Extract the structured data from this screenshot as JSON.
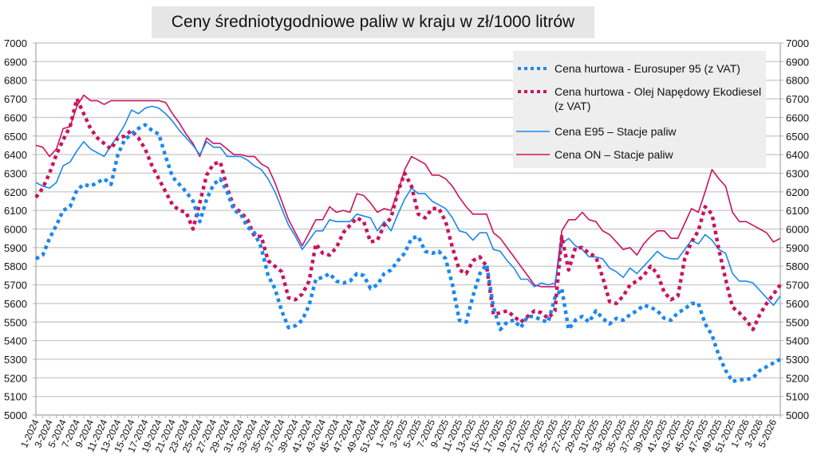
{
  "chart_data": {
    "type": "line",
    "title": "Ceny średniotygodniowe paliw w kraju w zł/1000 litrów",
    "xlabel": "",
    "ylabel": "",
    "ylim": [
      5000,
      7000
    ],
    "y_ticks": [
      "5000",
      "5100",
      "5200",
      "5300",
      "5400",
      "5500",
      "5600",
      "5700",
      "5800",
      "5900",
      "6000",
      "6100",
      "6200",
      "6300",
      "6400",
      "6500",
      "6600",
      "6700",
      "6800",
      "6900",
      "7000"
    ],
    "y_axis_both_sides": true,
    "grid": "horizontal",
    "legend_position": "top-right",
    "x_first_week": "1-2024",
    "x_tick_every": 2,
    "x_tick_labels": [
      "1-2024",
      "3-2024",
      "5-2024",
      "7-2024",
      "9-2024",
      "11-2024",
      "13-2024",
      "15-2024",
      "17-2024",
      "19-2024",
      "21-2024",
      "23-2024",
      "25-2024",
      "27-2024",
      "29-2024",
      "31-2024",
      "33-2024",
      "35-2024",
      "37-2024",
      "39-2024",
      "41-2024",
      "43-2024",
      "45-2024",
      "47-2024",
      "49-2024",
      "51-2024",
      "1-2025",
      "3-2025",
      "5-2025",
      "7-2025",
      "9-2025",
      "11-2025",
      "13-2025",
      "15-2025",
      "17-2025",
      "19-2025",
      "21-2025",
      "23-2025",
      "25-2025",
      "27-2025",
      "29-2025",
      "31-2025",
      "33-2025",
      "35-2025",
      "37-2025",
      "39-2025",
      "41-2025",
      "43-2025",
      "45-2025",
      "47-2025",
      "49-2025",
      "51-2025",
      "1-2026",
      "3-2026",
      "5-2026"
    ],
    "series": [
      {
        "name": "Cena hurtowa  - Eurosuper 95 (z VAT)",
        "color": "#1a87f0",
        "style": "dotted",
        "values": [
          5840,
          5860,
          5950,
          6020,
          6100,
          6120,
          6210,
          6240,
          6230,
          6250,
          6270,
          6240,
          6400,
          6480,
          6510,
          6540,
          6560,
          6530,
          6510,
          6390,
          6280,
          6240,
          6200,
          6150,
          6040,
          6160,
          6240,
          6270,
          6200,
          6100,
          6080,
          6010,
          5980,
          5900,
          5750,
          5680,
          5560,
          5470,
          5480,
          5510,
          5590,
          5730,
          5740,
          5760,
          5720,
          5710,
          5720,
          5760,
          5750,
          5680,
          5700,
          5760,
          5780,
          5830,
          5870,
          5950,
          5960,
          5880,
          5870,
          5880,
          5840,
          5700,
          5510,
          5500,
          5640,
          5760,
          5810,
          5580,
          5460,
          5500,
          5510,
          5470,
          5530,
          5530,
          5510,
          5500,
          5630,
          5680,
          5460,
          5510,
          5530,
          5500,
          5560,
          5520,
          5490,
          5520,
          5510,
          5540,
          5560,
          5590,
          5580,
          5560,
          5520,
          5510,
          5550,
          5570,
          5600,
          5600,
          5490,
          5430,
          5320,
          5240,
          5180,
          5190,
          5190,
          5200,
          5240,
          5260,
          5280,
          5300
        ]
      },
      {
        "name": "Cena hurtowa - Olej Napędowy Ekodiesel (z VAT)",
        "color": "#c8145f",
        "style": "dotted",
        "values": [
          6170,
          6220,
          6300,
          6400,
          6480,
          6550,
          6700,
          6620,
          6540,
          6490,
          6460,
          6430,
          6490,
          6500,
          6530,
          6490,
          6430,
          6340,
          6270,
          6200,
          6130,
          6100,
          6090,
          6000,
          6140,
          6290,
          6350,
          6360,
          6220,
          6120,
          6090,
          6050,
          5960,
          5960,
          5830,
          5800,
          5770,
          5630,
          5620,
          5650,
          5720,
          5920,
          5870,
          5860,
          5900,
          5980,
          6020,
          6060,
          6040,
          5930,
          5940,
          6020,
          6060,
          6200,
          6300,
          6230,
          6080,
          6060,
          6110,
          6110,
          6040,
          5900,
          5780,
          5760,
          5830,
          5850,
          5800,
          5540,
          5550,
          5560,
          5530,
          5500,
          5530,
          5560,
          5550,
          5520,
          5560,
          5960,
          5780,
          5900,
          5900,
          5870,
          5850,
          5740,
          5610,
          5600,
          5640,
          5700,
          5720,
          5750,
          5800,
          5760,
          5660,
          5620,
          5640,
          5840,
          5930,
          5990,
          6120,
          6080,
          5890,
          5730,
          5580,
          5550,
          5510,
          5460,
          5540,
          5600,
          5650,
          5700
        ]
      },
      {
        "name": "Cena E95 – Stacje paliw",
        "color": "#1a87f0",
        "style": "solid",
        "values": [
          6250,
          6230,
          6220,
          6250,
          6340,
          6360,
          6420,
          6470,
          6430,
          6410,
          6390,
          6450,
          6500,
          6560,
          6640,
          6620,
          6650,
          6660,
          6650,
          6620,
          6580,
          6530,
          6490,
          6450,
          6400,
          6470,
          6440,
          6440,
          6390,
          6390,
          6390,
          6370,
          6340,
          6320,
          6270,
          6200,
          6110,
          6020,
          5960,
          5890,
          5940,
          5990,
          5990,
          6050,
          6040,
          6040,
          6040,
          6080,
          6070,
          6060,
          5990,
          6040,
          5990,
          6080,
          6160,
          6220,
          6190,
          6190,
          6150,
          6130,
          6110,
          6060,
          5990,
          5980,
          5940,
          5980,
          5980,
          5890,
          5880,
          5830,
          5790,
          5730,
          5730,
          5690,
          5710,
          5700,
          5710,
          5920,
          5950,
          5910,
          5890,
          5850,
          5850,
          5840,
          5790,
          5770,
          5740,
          5790,
          5760,
          5800,
          5840,
          5880,
          5850,
          5840,
          5840,
          5890,
          5940,
          5920,
          5970,
          5940,
          5890,
          5870,
          5760,
          5720,
          5720,
          5710,
          5670,
          5630,
          5590,
          5640
        ]
      },
      {
        "name": "Cena ON – Stacje paliw",
        "color": "#c8145f",
        "style": "solid",
        "values": [
          6450,
          6440,
          6390,
          6430,
          6540,
          6550,
          6660,
          6720,
          6690,
          6690,
          6670,
          6690,
          6690,
          6690,
          6690,
          6690,
          6690,
          6690,
          6690,
          6680,
          6620,
          6570,
          6510,
          6460,
          6390,
          6490,
          6460,
          6460,
          6430,
          6400,
          6400,
          6390,
          6390,
          6350,
          6330,
          6250,
          6150,
          6050,
          5980,
          5910,
          5980,
          6050,
          6050,
          6120,
          6090,
          6100,
          6090,
          6190,
          6180,
          6140,
          6090,
          6110,
          6100,
          6200,
          6320,
          6390,
          6370,
          6350,
          6290,
          6290,
          6270,
          6230,
          6170,
          6120,
          6080,
          6080,
          6080,
          5980,
          5950,
          5900,
          5850,
          5800,
          5750,
          5700,
          5690,
          5690,
          5690,
          5990,
          6050,
          6050,
          6090,
          6050,
          6040,
          5990,
          5970,
          5930,
          5890,
          5900,
          5860,
          5920,
          5960,
          5990,
          5990,
          5950,
          5950,
          6030,
          6110,
          6090,
          6200,
          6320,
          6270,
          6230,
          6090,
          6040,
          6040,
          6020,
          6000,
          5980,
          5930,
          5950
        ]
      }
    ]
  }
}
